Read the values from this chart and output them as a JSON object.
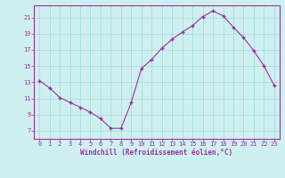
{
  "x": [
    0,
    1,
    2,
    3,
    4,
    5,
    6,
    7,
    8,
    9,
    10,
    11,
    12,
    13,
    14,
    15,
    16,
    17,
    18,
    19,
    20,
    21,
    22,
    23
  ],
  "y": [
    13.2,
    12.3,
    11.1,
    10.5,
    9.9,
    9.3,
    8.5,
    7.3,
    7.3,
    10.5,
    14.7,
    15.8,
    17.2,
    18.3,
    19.2,
    20.0,
    21.1,
    21.8,
    21.2,
    19.8,
    18.5,
    16.9,
    15.0,
    12.6
  ],
  "line_color": "#9b30a0",
  "marker": "+",
  "marker_size": 3,
  "marker_linewidth": 1.0,
  "linewidth": 0.8,
  "background_color": "#cff0f0",
  "grid_color": "#a0d8d8",
  "xlabel": "Windchill (Refroidissement éolien,°C)",
  "xlabel_color": "#9b30a0",
  "tick_color": "#9b30a0",
  "spine_color": "#9b30a0",
  "ylim": [
    6,
    22.5
  ],
  "xlim": [
    -0.5,
    23.5
  ],
  "yticks": [
    7,
    9,
    11,
    13,
    15,
    17,
    19,
    21
  ],
  "xticks": [
    0,
    1,
    2,
    3,
    4,
    5,
    6,
    7,
    8,
    9,
    10,
    11,
    12,
    13,
    14,
    15,
    16,
    17,
    18,
    19,
    20,
    21,
    22,
    23
  ],
  "xlabel_fontsize": 5.5,
  "tick_fontsize": 5.0
}
